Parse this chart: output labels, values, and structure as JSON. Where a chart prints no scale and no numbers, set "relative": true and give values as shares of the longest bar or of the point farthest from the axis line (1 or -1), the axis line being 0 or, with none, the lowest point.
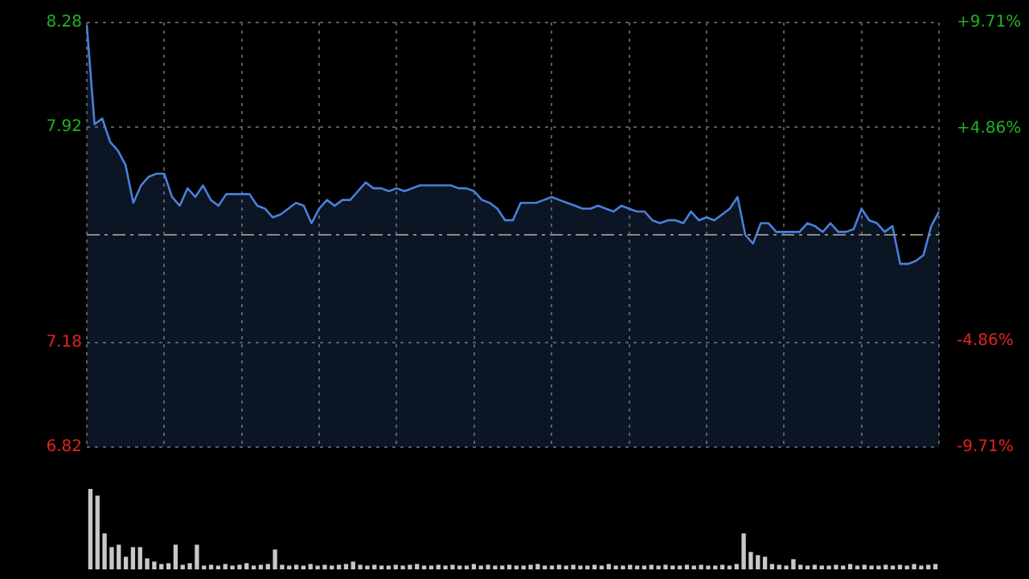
{
  "chart_data": [
    {
      "type": "area",
      "color": "#4a80dc",
      "categories": [
        null,
        null,
        null,
        null,
        null,
        null,
        null,
        null,
        null,
        null,
        null,
        null,
        null,
        null,
        null,
        null,
        null,
        null,
        null,
        null,
        null,
        null,
        null,
        null,
        null,
        null,
        null,
        null,
        null,
        null,
        null,
        null,
        null,
        null,
        null,
        null,
        null,
        null,
        null,
        null,
        null,
        null,
        null,
        null,
        null,
        null,
        null,
        null,
        null,
        null,
        null,
        null,
        null,
        null,
        null,
        null,
        null,
        null,
        null,
        null,
        null,
        null,
        null,
        null,
        null,
        null,
        null,
        null,
        null,
        null,
        null,
        null,
        null,
        null,
        null,
        null,
        null,
        null,
        null,
        null,
        null,
        null,
        null,
        null,
        null,
        null,
        null,
        null,
        null,
        null,
        null,
        null,
        null,
        null,
        null,
        null,
        null,
        null,
        null,
        null,
        null,
        null,
        null,
        null,
        null,
        null,
        null,
        null,
        null,
        null,
        null
      ],
      "values": [
        8.27,
        7.93,
        7.95,
        7.87,
        7.84,
        7.79,
        7.66,
        7.72,
        7.75,
        7.76,
        7.76,
        7.68,
        7.65,
        7.71,
        7.68,
        7.72,
        7.67,
        7.65,
        7.69,
        7.69,
        7.69,
        7.69,
        7.65,
        7.64,
        7.61,
        7.62,
        7.64,
        7.66,
        7.65,
        7.59,
        7.64,
        7.67,
        7.65,
        7.67,
        7.67,
        7.7,
        7.73,
        7.71,
        7.71,
        7.7,
        7.71,
        7.7,
        7.71,
        7.72,
        7.72,
        7.72,
        7.72,
        7.72,
        7.71,
        7.71,
        7.7,
        7.67,
        7.66,
        7.64,
        7.6,
        7.6,
        7.66,
        7.66,
        7.66,
        7.67,
        7.68,
        7.67,
        7.66,
        7.65,
        7.64,
        7.64,
        7.65,
        7.64,
        7.63,
        7.65,
        7.64,
        7.63,
        7.63,
        7.6,
        7.59,
        7.6,
        7.6,
        7.59,
        7.63,
        7.6,
        7.61,
        7.6,
        7.62,
        7.64,
        7.68,
        7.55,
        7.52,
        7.59,
        7.59,
        7.56,
        7.56,
        7.56,
        7.56,
        7.59,
        7.58,
        7.56,
        7.59,
        7.56,
        7.56,
        7.57,
        7.64,
        7.6,
        7.59,
        7.56,
        7.58,
        7.45,
        7.45,
        7.46,
        7.48,
        7.58,
        7.63
      ],
      "ylim": [
        6.82,
        8.28
      ],
      "yticks": [
        6.82,
        7.18,
        7.92,
        8.28
      ],
      "y2lim": [
        -9.71,
        9.71
      ],
      "y2ticks": [
        {
          "value": -9.71,
          "label": "-9.71%"
        },
        {
          "value": -4.86,
          "label": "-4.86%"
        },
        {
          "value": 4.86,
          "label": "+4.86%"
        },
        {
          "value": 9.71,
          "label": "+9.71%"
        }
      ],
      "ref_lines": [
        {
          "axis": "y",
          "value": 7.55,
          "color": "#8a8a8a",
          "line_style": "dashdot"
        }
      ],
      "grid": true
    },
    {
      "type": "bar",
      "relative": true,
      "color": "#c8c8c8",
      "categories": [
        null,
        null,
        null,
        null,
        null,
        null,
        null,
        null,
        null,
        null,
        null,
        null,
        null,
        null,
        null,
        null,
        null,
        null,
        null,
        null,
        null,
        null,
        null,
        null,
        null,
        null,
        null,
        null,
        null,
        null,
        null,
        null,
        null,
        null,
        null,
        null,
        null,
        null,
        null,
        null,
        null,
        null,
        null,
        null,
        null,
        null,
        null,
        null,
        null,
        null,
        null,
        null,
        null,
        null,
        null,
        null,
        null,
        null,
        null,
        null,
        null,
        null,
        null,
        null,
        null,
        null,
        null,
        null,
        null,
        null,
        null,
        null,
        null,
        null,
        null,
        null,
        null,
        null,
        null,
        null,
        null,
        null,
        null,
        null,
        null,
        null,
        null,
        null,
        null,
        null,
        null,
        null,
        null,
        null,
        null,
        null,
        null,
        null,
        null,
        null,
        null,
        null,
        null,
        null,
        null,
        null,
        null,
        null,
        null,
        null,
        null,
        null,
        null,
        null,
        null,
        null,
        null,
        null,
        null,
        null
      ],
      "values": [
        1,
        0.91,
        0.44,
        0.27,
        0.3,
        0.15,
        0.27,
        0.27,
        0.13,
        0.09,
        0.06,
        0.07,
        0.3,
        0.05,
        0.07,
        0.3,
        0.04,
        0.05,
        0.04,
        0.06,
        0.04,
        0.05,
        0.07,
        0.04,
        0.05,
        0.06,
        0.24,
        0.05,
        0.04,
        0.05,
        0.04,
        0.06,
        0.04,
        0.05,
        0.04,
        0.05,
        0.06,
        0.09,
        0.05,
        0.04,
        0.05,
        0.04,
        0.04,
        0.05,
        0.04,
        0.05,
        0.06,
        0.04,
        0.04,
        0.05,
        0.04,
        0.05,
        0.04,
        0.04,
        0.06,
        0.04,
        0.05,
        0.04,
        0.04,
        0.05,
        0.04,
        0.04,
        0.05,
        0.06,
        0.04,
        0.04,
        0.05,
        0.04,
        0.05,
        0.04,
        0.04,
        0.05,
        0.04,
        0.06,
        0.04,
        0.04,
        0.05,
        0.04,
        0.04,
        0.05,
        0.04,
        0.05,
        0.04,
        0.04,
        0.05,
        0.04,
        0.05,
        0.04,
        0.04,
        0.05,
        0.04,
        0.06,
        0.44,
        0.21,
        0.17,
        0.15,
        0.06,
        0.05,
        0.04,
        0.12,
        0.05,
        0.04,
        0.05,
        0.04,
        0.04,
        0.05,
        0.04,
        0.06,
        0.04,
        0.05,
        0.04,
        0.04,
        0.05,
        0.04,
        0.05,
        0.04,
        0.06,
        0.04,
        0.05,
        0.06
      ]
    }
  ]
}
